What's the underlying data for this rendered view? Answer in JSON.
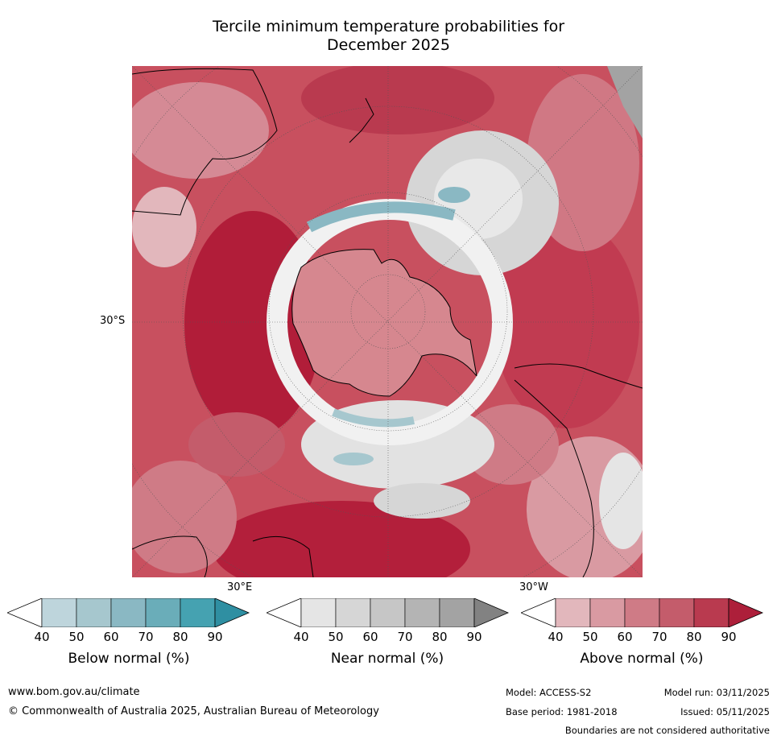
{
  "title_line1": "Tercile minimum temperature probabilities for",
  "title_line2": "December 2025",
  "map": {
    "lat_label": "30°S",
    "lon_labels": [
      "30°E",
      "30°W"
    ]
  },
  "colorbars": [
    {
      "label": "Below normal (%)",
      "ticks": [
        "40",
        "50",
        "60",
        "70",
        "80",
        "90"
      ],
      "colors": [
        "#ffffff",
        "#bed5dc",
        "#a6c7ce",
        "#8ab8c3",
        "#6aadb9",
        "#45a2b1",
        "#2f8fa2"
      ]
    },
    {
      "label": "Near normal (%)",
      "ticks": [
        "40",
        "50",
        "60",
        "70",
        "80",
        "90"
      ],
      "colors": [
        "#ffffff",
        "#e5e5e5",
        "#d6d6d6",
        "#c6c6c6",
        "#b4b4b4",
        "#a3a3a3",
        "#828282"
      ]
    },
    {
      "label": "Above normal (%)",
      "ticks": [
        "40",
        "50",
        "60",
        "70",
        "80",
        "90"
      ],
      "colors": [
        "#ffffff",
        "#e2b7bc",
        "#d99aa2",
        "#cf7b86",
        "#c45c6b",
        "#b93a4f",
        "#ad1f3a"
      ]
    }
  ],
  "footer": {
    "website": "www.bom.gov.au/climate",
    "copyright": "© Commonwealth of Australia 2025, Australian Bureau of Meteorology",
    "model": "Model: ACCESS-S2",
    "model_run": "Model run: 03/11/2025",
    "base_period": "Base period: 1981-2018",
    "issued": "Issued: 05/11/2025",
    "disclaimer": "Boundaries are not considered authoritative"
  }
}
